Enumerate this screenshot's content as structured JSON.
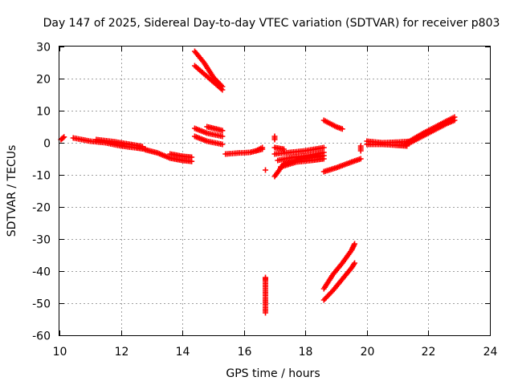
{
  "chart_data": {
    "type": "scatter",
    "title": "Day 147 of 2025, Sidereal Day-to-day VTEC variation (SDTVAR) for receiver p803",
    "xlabel": "GPS time / hours",
    "ylabel": "SDTVAR / TECUs",
    "xlim": [
      10,
      24
    ],
    "ylim": [
      -60,
      30
    ],
    "xticks": [
      10,
      12,
      14,
      16,
      18,
      20,
      22,
      24
    ],
    "yticks": [
      -60,
      -50,
      -40,
      -30,
      -20,
      -10,
      0,
      10,
      20,
      30
    ],
    "grid": true,
    "marker": "plus",
    "color": "#ff0000",
    "segments": [
      {
        "x": [
          10.05,
          10.15
        ],
        "y": [
          1.0,
          1.8
        ]
      },
      {
        "x": [
          10.45,
          11.0,
          11.5,
          12.0,
          12.5,
          12.8
        ],
        "y": [
          1.5,
          0.5,
          0.0,
          -1.0,
          -1.6,
          -2.0
        ]
      },
      {
        "x": [
          11.2,
          11.8,
          12.5,
          12.7
        ],
        "y": [
          1.0,
          0.3,
          -0.8,
          -1.2
        ]
      },
      {
        "x": [
          12.8,
          13.2,
          13.6,
          14.0,
          14.3
        ],
        "y": [
          -2.2,
          -3.2,
          -4.8,
          -5.5,
          -5.8
        ]
      },
      {
        "x": [
          13.6,
          14.0,
          14.3
        ],
        "y": [
          -3.5,
          -4.2,
          -4.5
        ]
      },
      {
        "x": [
          14.4,
          14.7,
          15.0,
          15.3
        ],
        "y": [
          28.5,
          25.0,
          20.5,
          17.5
        ]
      },
      {
        "x": [
          14.4,
          14.7,
          15.0,
          15.3
        ],
        "y": [
          24.0,
          21.5,
          19.0,
          16.5
        ]
      },
      {
        "x": [
          14.4,
          14.8,
          15.3
        ],
        "y": [
          4.5,
          3.0,
          2.0
        ]
      },
      {
        "x": [
          14.4,
          14.8,
          15.3
        ],
        "y": [
          2.0,
          0.5,
          -0.5
        ]
      },
      {
        "x": [
          14.8,
          15.1,
          15.3
        ],
        "y": [
          5.0,
          4.3,
          3.8
        ]
      },
      {
        "x": [
          15.4,
          15.8,
          16.2,
          16.6
        ],
        "y": [
          -3.5,
          -3.2,
          -3.0,
          -2.0
        ]
      },
      {
        "x": [
          16.4,
          16.6
        ],
        "y": [
          -2.5,
          -1.5
        ]
      },
      {
        "x": [
          16.7
        ],
        "y": [
          -8.5
        ]
      },
      {
        "x": [
          16.7,
          16.7,
          16.7,
          16.7
        ],
        "y": [
          -42.0,
          -42.8,
          -46.0,
          -53.0
        ]
      },
      {
        "x": [
          17.0,
          17.0
        ],
        "y": [
          2.0,
          1.0
        ]
      },
      {
        "x": [
          17.0,
          17.3
        ],
        "y": [
          -1.5,
          -2.0
        ]
      },
      {
        "x": [
          17.0,
          17.3,
          17.8,
          18.3,
          18.6
        ],
        "y": [
          -10.5,
          -6.5,
          -5.2,
          -4.5,
          -4.0
        ]
      },
      {
        "x": [
          17.0,
          17.5,
          18.0,
          18.6
        ],
        "y": [
          -3.5,
          -3.0,
          -2.5,
          -1.5
        ]
      },
      {
        "x": [
          17.1,
          17.6,
          18.1,
          18.6
        ],
        "y": [
          -5.5,
          -4.5,
          -4.0,
          -3.0
        ]
      },
      {
        "x": [
          17.2,
          17.7,
          18.2,
          18.6
        ],
        "y": [
          -7.5,
          -6.0,
          -5.5,
          -5.0
        ]
      },
      {
        "x": [
          18.6,
          18.8,
          19.0,
          19.2
        ],
        "y": [
          7.0,
          6.0,
          5.0,
          4.3
        ]
      },
      {
        "x": [
          18.6,
          19.0,
          19.5,
          19.8
        ],
        "y": [
          -9.0,
          -7.8,
          -6.0,
          -5.0
        ]
      },
      {
        "x": [
          18.6,
          18.9,
          19.2,
          19.5,
          19.6
        ],
        "y": [
          -45.5,
          -41.0,
          -37.5,
          -33.5,
          -31.5
        ]
      },
      {
        "x": [
          18.6,
          18.9,
          19.2,
          19.5,
          19.6
        ],
        "y": [
          -49.0,
          -46.0,
          -42.5,
          -39.0,
          -37.5
        ]
      },
      {
        "x": [
          19.8,
          19.8
        ],
        "y": [
          -1.0,
          -2.5
        ]
      },
      {
        "x": [
          20.0,
          20.5,
          21.0,
          21.3
        ],
        "y": [
          -0.5,
          -0.5,
          -0.8,
          -1.0
        ]
      },
      {
        "x": [
          20.0,
          20.5,
          21.0,
          21.5
        ],
        "y": [
          0.5,
          0.0,
          0.2,
          0.5
        ]
      },
      {
        "x": [
          21.3,
          21.8,
          22.2,
          22.6,
          22.85
        ],
        "y": [
          -0.5,
          2.0,
          4.0,
          6.0,
          7.0
        ]
      },
      {
        "x": [
          21.3,
          21.8,
          22.2,
          22.6,
          22.85
        ],
        "y": [
          0.0,
          2.8,
          4.8,
          6.8,
          8.0
        ]
      }
    ]
  }
}
